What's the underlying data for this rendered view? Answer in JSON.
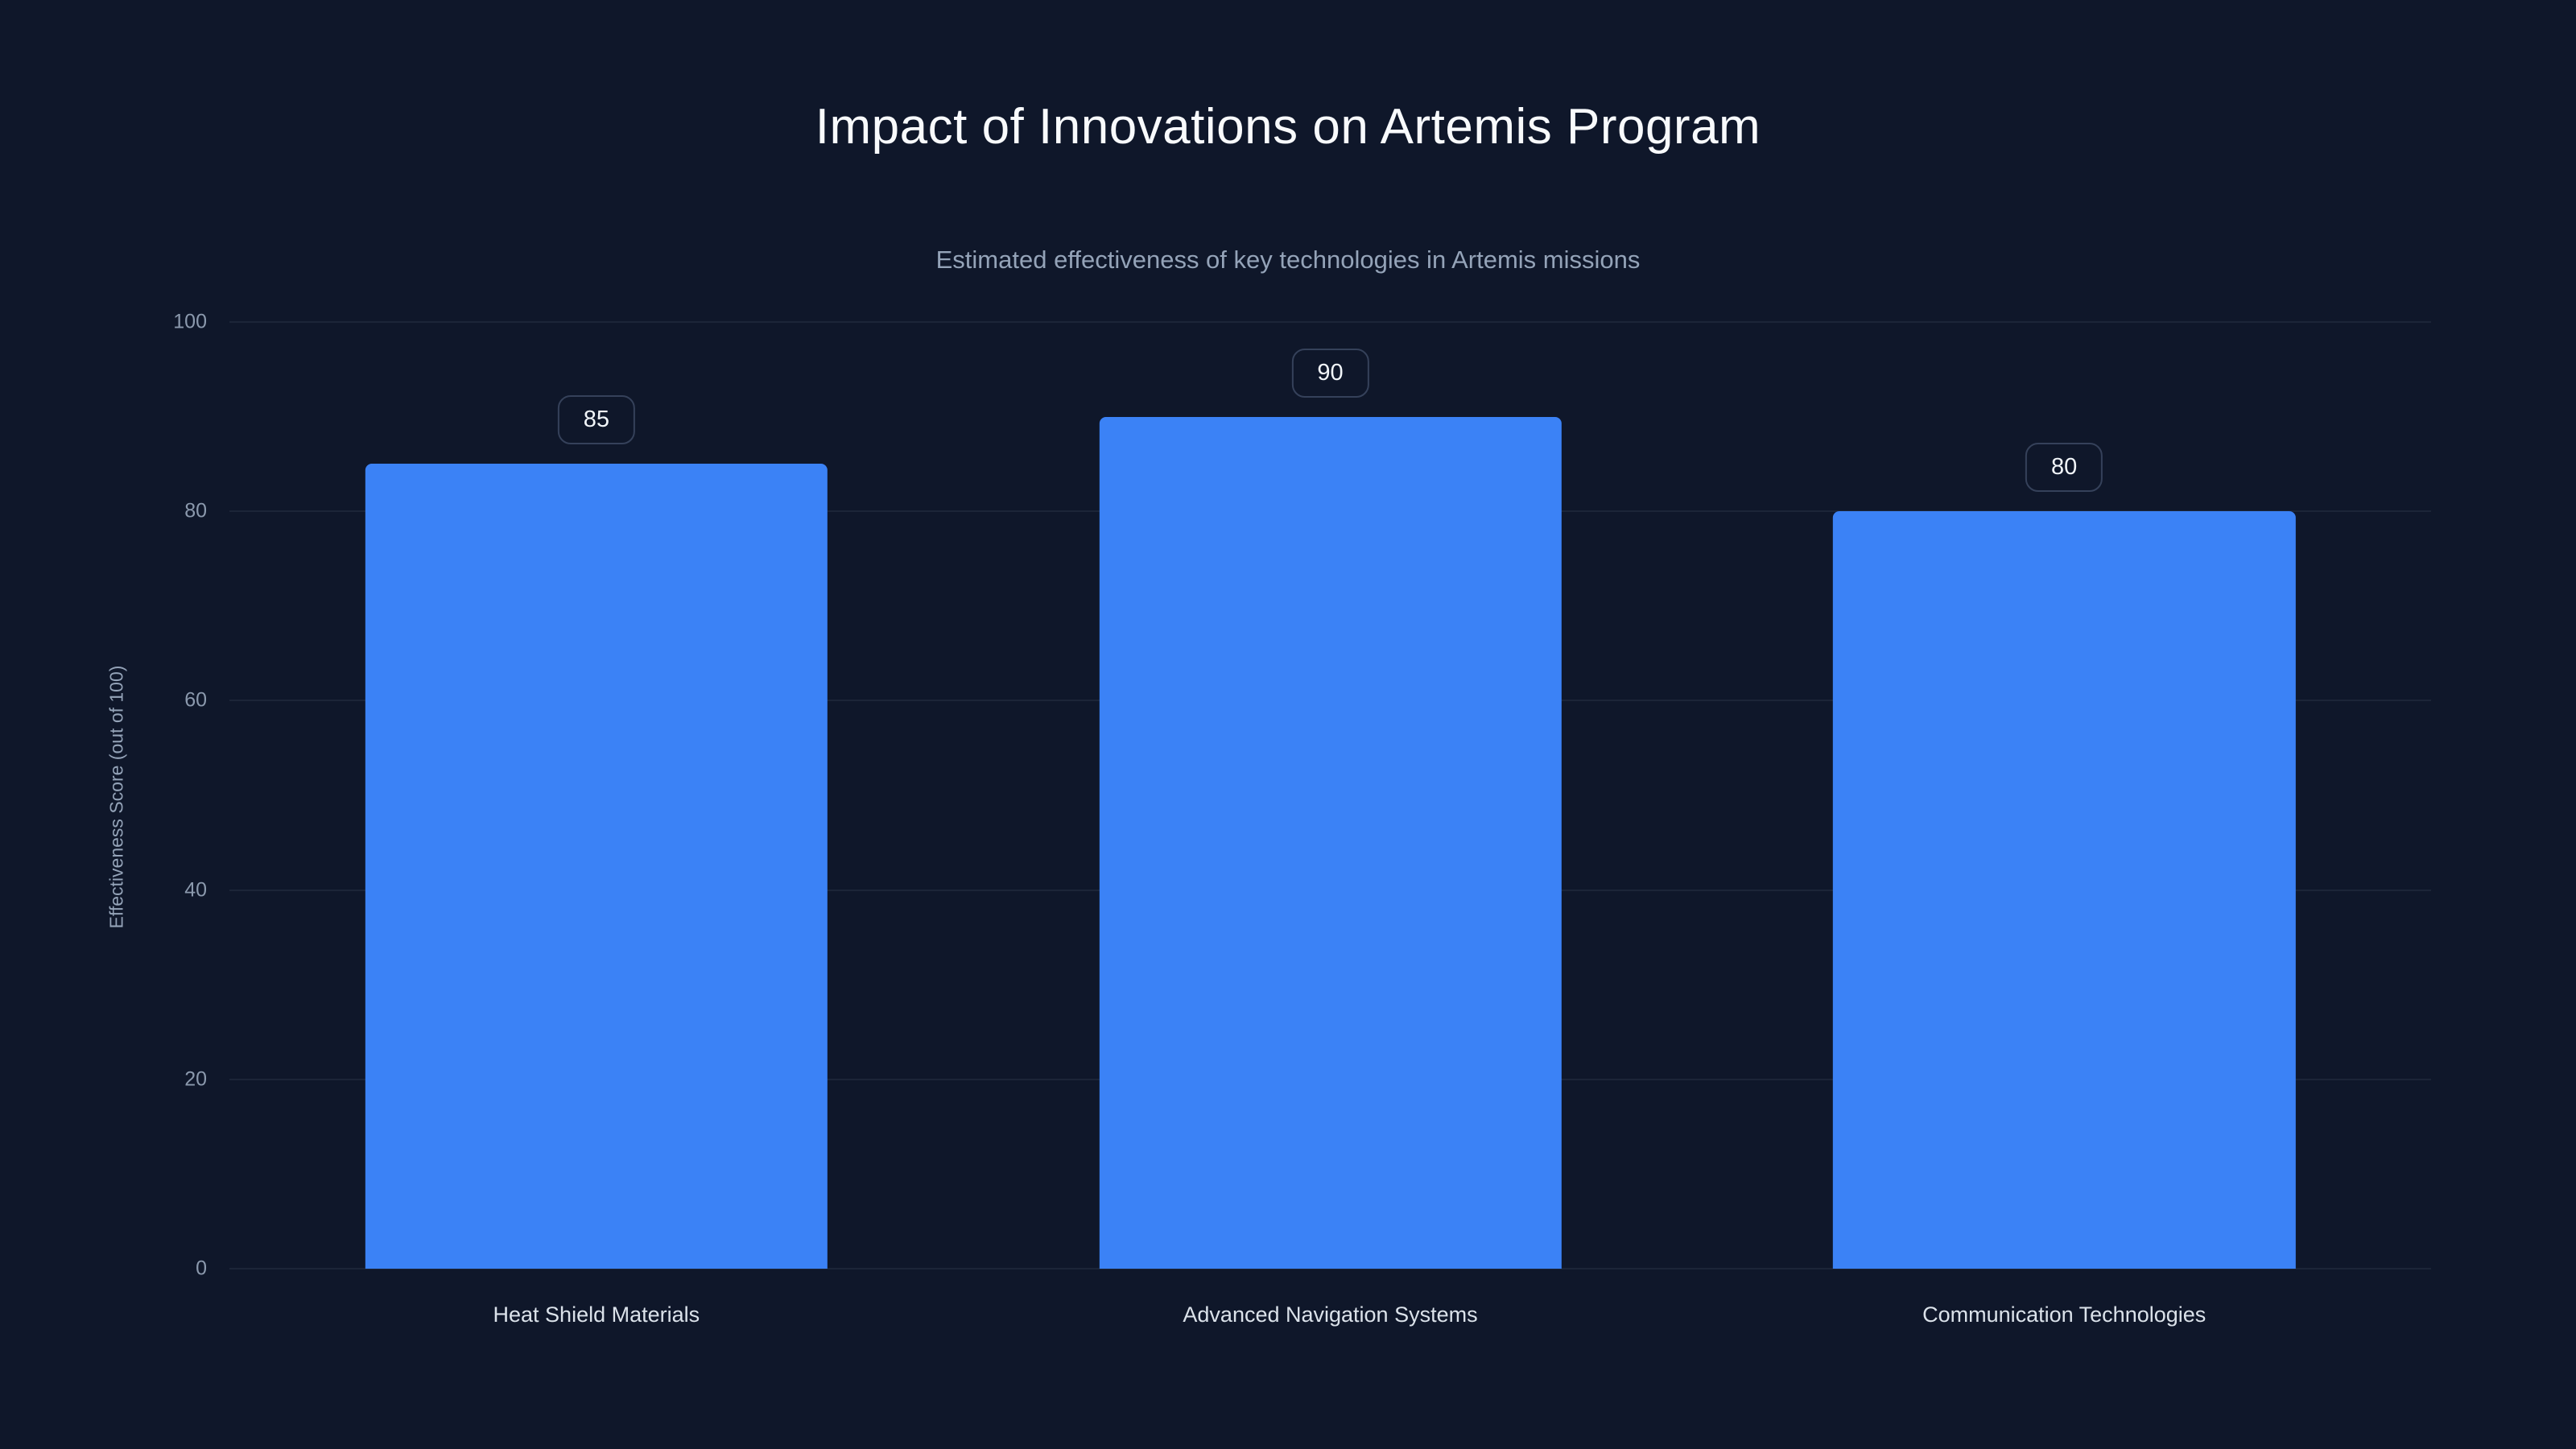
{
  "title": "Impact of Innovations on Artemis Program",
  "subtitle": "Estimated effectiveness of key technologies in Artemis missions",
  "colors": {
    "background": "#0f172a",
    "bar": "#3b82f6",
    "title_text": "#f8fafc",
    "muted_text": "#94a3b8"
  },
  "chart_data": {
    "type": "bar",
    "title": "Impact of Innovations on Artemis Program",
    "subtitle": "Estimated effectiveness of key technologies in Artemis missions",
    "categories": [
      "Heat Shield Materials",
      "Advanced Navigation Systems",
      "Communication Technologies"
    ],
    "values": [
      85,
      90,
      80
    ],
    "xlabel": "",
    "ylabel": "Effectiveness Score (out of 100)",
    "ylim": [
      0,
      100
    ],
    "yticks": [
      0,
      20,
      40,
      60,
      80,
      100
    ],
    "grid": true,
    "legend": "none",
    "bar_color": "#3b82f6"
  }
}
